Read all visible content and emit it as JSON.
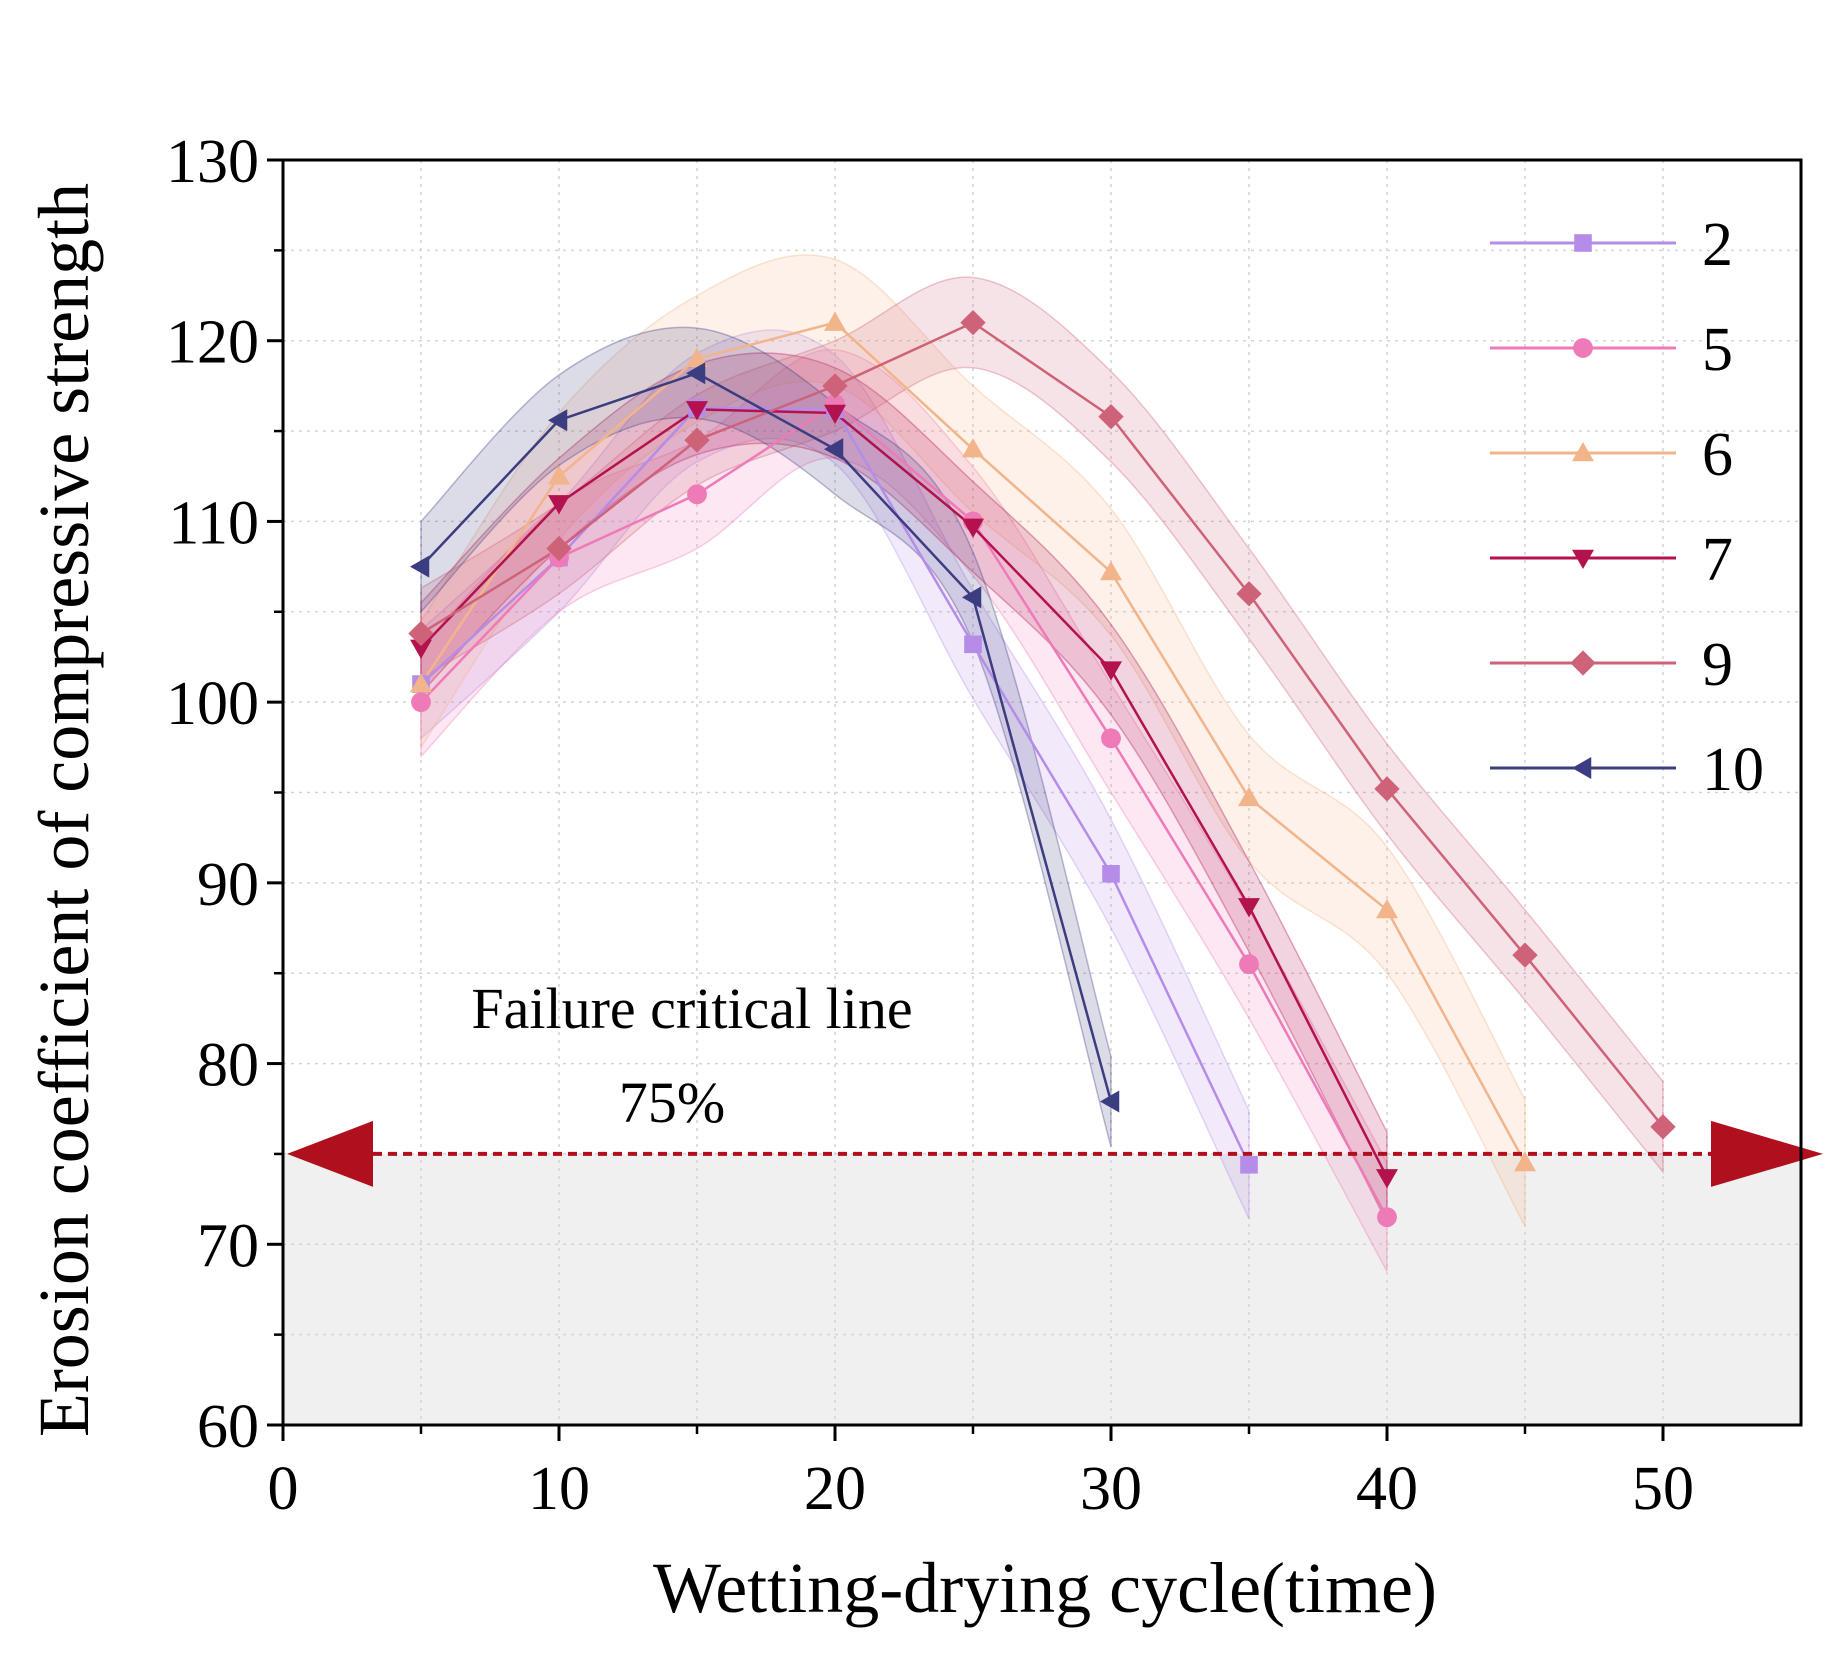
{
  "chart_data": {
    "type": "line",
    "xlabel": "Wetting-drying cycle(time)",
    "ylabel": "Erosion coefficient of compressive strength",
    "xlim": [
      0,
      55
    ],
    "ylim": [
      60,
      130
    ],
    "xticks": [
      0,
      10,
      20,
      30,
      40,
      50
    ],
    "yticks": [
      60,
      70,
      80,
      90,
      100,
      110,
      120,
      130
    ],
    "grid": true,
    "legend_position": "top-right",
    "critical_line": {
      "value": 75,
      "label": "Failure critical line",
      "value_label": "75%",
      "color": "#b0101e"
    },
    "series": [
      {
        "name": "2",
        "marker": "square",
        "color": "#b58ce8",
        "band": 3.0,
        "x": [
          5,
          10,
          15,
          20,
          25,
          30,
          35
        ],
        "y": [
          101,
          108,
          116.3,
          116.2,
          103.2,
          90.5,
          74.4
        ]
      },
      {
        "name": "5",
        "marker": "circle",
        "color": "#ee7ab8",
        "band": 3.0,
        "x": [
          5,
          10,
          15,
          20,
          25,
          30,
          35,
          40
        ],
        "y": [
          100,
          108,
          111.5,
          116.5,
          110,
          98,
          85.5,
          71.5
        ]
      },
      {
        "name": "6",
        "marker": "triangle-up",
        "color": "#f2b48a",
        "band": 3.5,
        "x": [
          5,
          10,
          15,
          20,
          25,
          30,
          35,
          40,
          45
        ],
        "y": [
          101,
          112.5,
          119,
          121,
          114,
          107.2,
          94.7,
          88.5,
          74.5
        ]
      },
      {
        "name": "7",
        "marker": "triangle-down",
        "color": "#b3124f",
        "band": 2.5,
        "x": [
          5,
          10,
          15,
          20,
          25,
          30,
          35,
          40
        ],
        "y": [
          103,
          111,
          116.2,
          116,
          109.7,
          101.8,
          88.7,
          73.7
        ]
      },
      {
        "name": "9",
        "marker": "diamond",
        "color": "#cd6278",
        "band": 2.5,
        "x": [
          5,
          10,
          15,
          20,
          25,
          30,
          35,
          40,
          45,
          50
        ],
        "y": [
          103.8,
          108.5,
          114.5,
          117.5,
          121,
          115.8,
          106,
          95.2,
          86,
          76.5
        ]
      },
      {
        "name": "10",
        "marker": "triangle-left",
        "color": "#3c3c80",
        "band": 2.5,
        "x": [
          5,
          10,
          15,
          20,
          25,
          30
        ],
        "y": [
          107.5,
          115.6,
          118.2,
          114,
          105.8,
          77.9
        ]
      }
    ]
  }
}
